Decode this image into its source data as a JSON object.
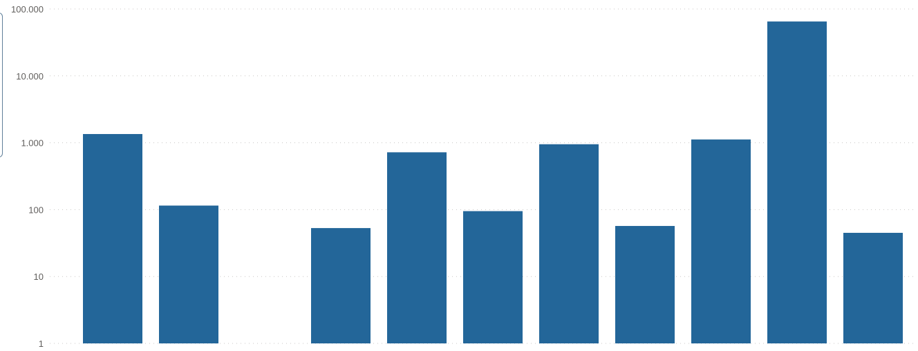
{
  "chart_data": {
    "type": "bar",
    "scale": "log",
    "grid": true,
    "categories": [
      "",
      "",
      "",
      "",
      "",
      "",
      "",
      "",
      "",
      "",
      ""
    ],
    "values": [
      1350,
      115,
      null,
      53,
      720,
      95,
      950,
      57,
      1120,
      65000,
      45
    ],
    "yticks": [
      1,
      10,
      100,
      1000,
      10000,
      100000
    ],
    "ytick_labels": [
      "1",
      "10",
      "100",
      "1.000",
      "10.000",
      "100.000"
    ],
    "ylim": [
      1,
      100000
    ],
    "title": "",
    "xlabel": "",
    "ylabel": "",
    "colors": {
      "bar": "#236699",
      "grid": "#c8c6c4",
      "tick_text": "#605e5c"
    }
  }
}
